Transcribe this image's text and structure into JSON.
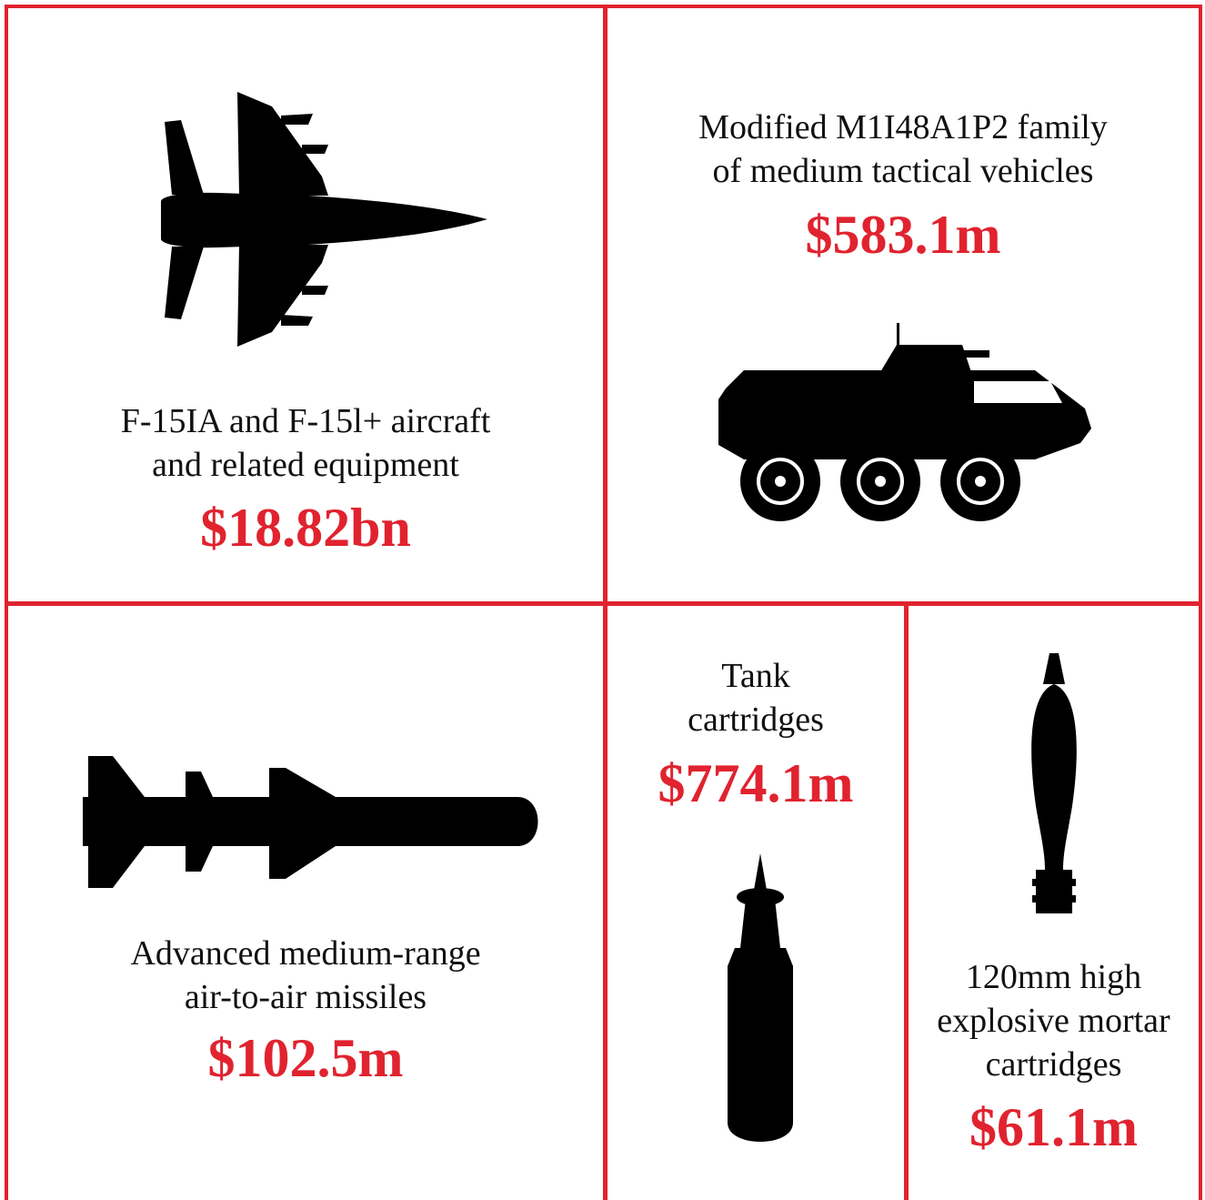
{
  "colors": {
    "accent": "#e0232f",
    "silhouette": "#000000",
    "background": "#ffffff"
  },
  "items": [
    {
      "icon": "fighter-jet-icon",
      "label_lines": [
        "F-15IA and F-15l+ aircraft",
        "and related equipment"
      ],
      "amount": "$18.82bn"
    },
    {
      "icon": "armored-vehicle-icon",
      "label_lines": [
        "Modified M1I48A1P2 family",
        "of medium tactical vehicles"
      ],
      "amount": "$583.1m"
    },
    {
      "icon": "missile-icon",
      "label_lines": [
        "Advanced medium-range",
        "air-to-air missiles"
      ],
      "amount": "$102.5m"
    },
    {
      "icon": "tank-cartridge-icon",
      "label_lines": [
        "Tank",
        "cartridges"
      ],
      "amount": "$774.1m"
    },
    {
      "icon": "mortar-shell-icon",
      "label_lines": [
        "120mm high",
        "explosive mortar",
        "cartridges"
      ],
      "amount": "$61.1m"
    }
  ]
}
